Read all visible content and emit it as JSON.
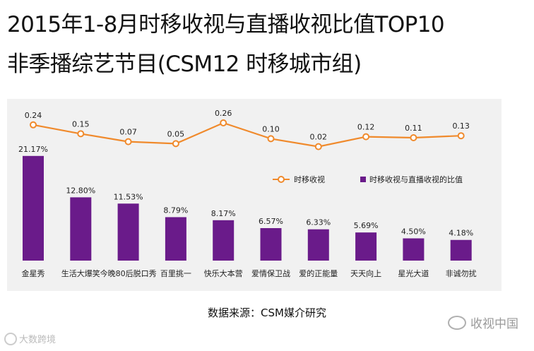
{
  "title": {
    "line1": "2015年1-8月时移收视与直播收视比值TOP10",
    "line2": "非季播综艺节目(CSM12 时移城市组)"
  },
  "chart_data": {
    "type": "bar+line",
    "categories": [
      "金星秀",
      "生活大爆笑",
      "今晚80后脱口秀",
      "百里挑一",
      "快乐大本营",
      "爱情保卫战",
      "爱的正能量",
      "天天向上",
      "星光大道",
      "非诚勿扰"
    ],
    "series": [
      {
        "name": "时移收视与直播收视的比值",
        "type": "bar",
        "values": [
          21.17,
          12.8,
          11.53,
          8.79,
          8.17,
          6.57,
          6.33,
          5.69,
          4.5,
          4.18
        ],
        "labels": [
          "21.17%",
          "12.80%",
          "11.53%",
          "8.79%",
          "8.17%",
          "6.57%",
          "6.33%",
          "5.69%",
          "4.50%",
          "4.18%"
        ],
        "color": "#6a1b8a"
      },
      {
        "name": "时移收视",
        "type": "line",
        "values": [
          0.24,
          0.15,
          0.07,
          0.05,
          0.26,
          0.1,
          0.02,
          0.12,
          0.11,
          0.13
        ],
        "labels": [
          "0.24",
          "0.15",
          "0.07",
          "0.05",
          "0.26",
          "0.10",
          "0.02",
          "0.12",
          "0.11",
          "0.13"
        ],
        "color": "#f08a2c"
      }
    ],
    "legend": [
      "时移收视",
      "时移收视与直播收视的比值"
    ],
    "legend_position": "right-middle"
  },
  "source": "数据来源：CSM媒介研究",
  "watermark_left": "大数跨境",
  "watermark_right": "收视中国"
}
